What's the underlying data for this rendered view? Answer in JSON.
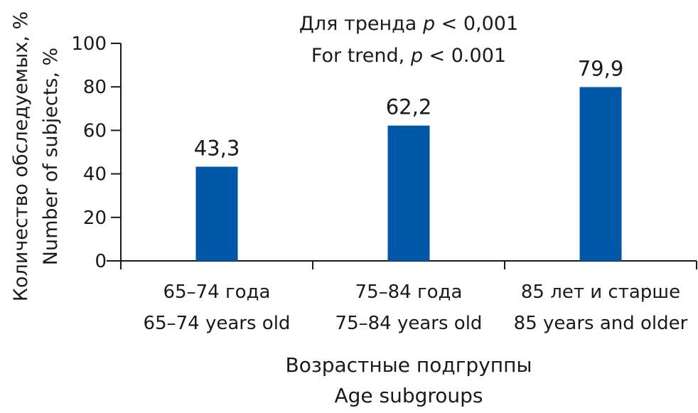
{
  "chart_data": {
    "type": "bar",
    "annotation": {
      "line1_prefix": "Для тренда ",
      "line1_p": "p",
      "line1_suffix": " < 0,001",
      "line2_prefix": "For trend, ",
      "line2_p": "p",
      "line2_suffix": " < 0.001"
    },
    "ylabel": {
      "ru": "Количество обследуемых, %",
      "en": "Number of subjects, %"
    },
    "xlabel": {
      "ru": "Возрастные подгруппы",
      "en": "Age subgroups"
    },
    "ylim": [
      0,
      100
    ],
    "y_ticks": [
      0,
      20,
      40,
      60,
      80,
      100
    ],
    "y_tick_labels": [
      "0",
      "20",
      "40",
      "60",
      "80",
      "100"
    ],
    "categories": [
      {
        "ru": "65–74 года",
        "en": "65–74 years old"
      },
      {
        "ru": "75–84 года",
        "en": "75–84 years old"
      },
      {
        "ru": "85 лет и старше",
        "en": "85 years and older"
      }
    ],
    "values": [
      43.3,
      62.2,
      79.9
    ],
    "value_labels": [
      "43,3",
      "62,2",
      "79,9"
    ],
    "bar_color": "#0057a8",
    "grid": false
  }
}
